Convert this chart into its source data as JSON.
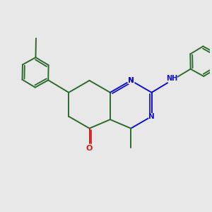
{
  "bg_color": "#e8e8e8",
  "bond_color": "#2d6b2d",
  "n_color": "#1010cc",
  "o_color": "#cc2020",
  "line_width": 1.4,
  "fig_size": [
    3.0,
    3.0
  ],
  "dpi": 100,
  "xlim": [
    0,
    10
  ],
  "ylim": [
    0,
    10
  ]
}
